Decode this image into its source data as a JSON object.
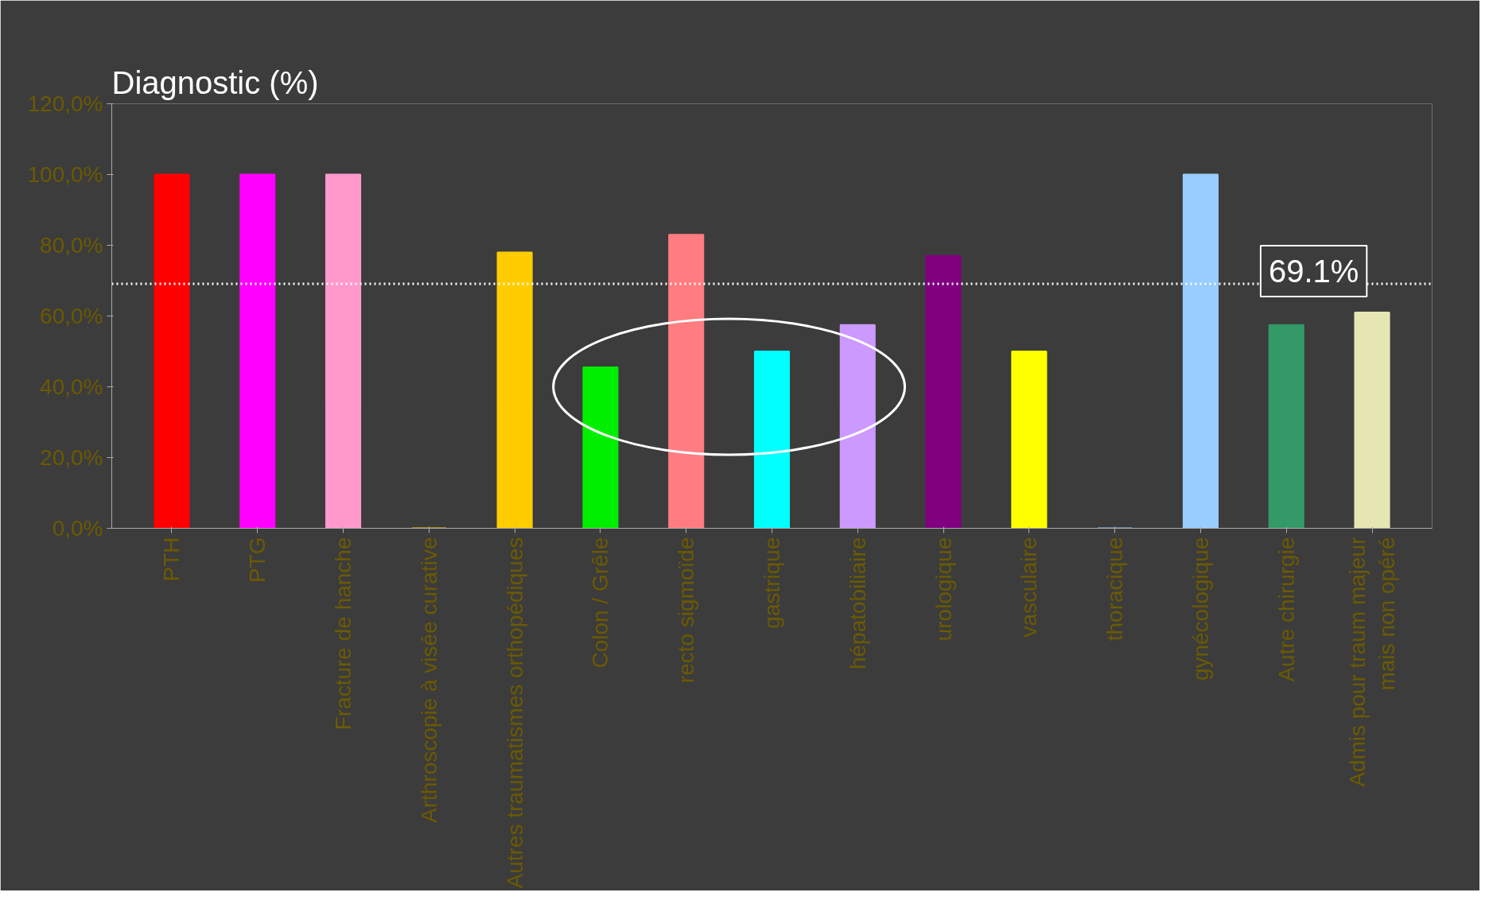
{
  "chart_data": {
    "type": "bar",
    "title": "Diagnostic (%)",
    "categories": [
      "PTH",
      "PTG",
      "Fracture de hanche",
      "Arthroscopie à visée curative",
      "Autres traumatismes orthopédiques",
      "Colon / Grêle",
      "recto sigmoïde",
      "gastrique",
      "hépatobiliaire",
      "urologique",
      "vasculaire",
      "thoracique",
      "gynécologique",
      "Autre chirurgie",
      "Admis pour traum majeur\nmais non opéré"
    ],
    "values": [
      100,
      100,
      100,
      0,
      78,
      45.5,
      83,
      50,
      57.5,
      77,
      50,
      0,
      100,
      57.5,
      61
    ],
    "colors": [
      "#ff0000",
      "#ff00ff",
      "#ff99cc",
      "#ffcc00",
      "#ffcc00",
      "#00ee00",
      "#ff7c80",
      "#00ffff",
      "#cc99ff",
      "#800080",
      "#ffff00",
      "#99ccff",
      "#99ccff",
      "#339966",
      "#e6e6b3"
    ],
    "ylim": [
      0,
      120
    ],
    "yticks": [
      {
        "value": 0,
        "label": "0,0%"
      },
      {
        "value": 20,
        "label": "20,0%"
      },
      {
        "value": 40,
        "label": "40,0%"
      },
      {
        "value": 60,
        "label": "60,0%"
      },
      {
        "value": 80,
        "label": "80,0%"
      },
      {
        "value": 100,
        "label": "100,0%"
      },
      {
        "value": 120,
        "label": "120,0%"
      }
    ],
    "grid": false,
    "ref_lines": [
      {
        "axis": "y",
        "value": 69.1,
        "label": "69.1%",
        "color": "#ffffff",
        "line_style": "dotted"
      }
    ]
  }
}
